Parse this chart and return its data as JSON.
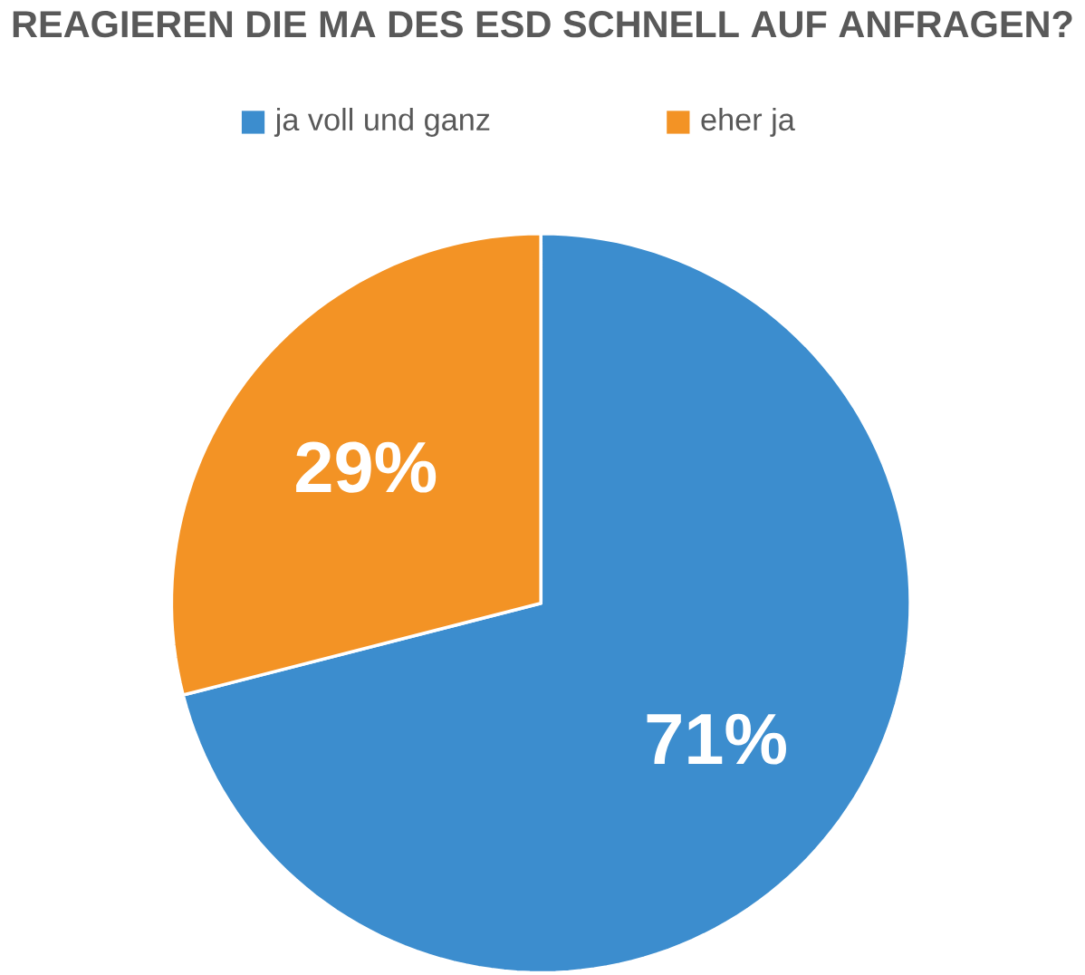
{
  "chart_data": {
    "type": "pie",
    "title": "REAGIEREN DIE MA DES ESD SCHNELL AUF ANFRAGEN?",
    "categories": [
      "ja voll und ganz",
      "eher ja"
    ],
    "values": [
      71,
      29
    ],
    "colors": [
      "#3c8dce",
      "#f39325"
    ],
    "value_labels": [
      "71%",
      "29%"
    ],
    "legend": "top"
  }
}
